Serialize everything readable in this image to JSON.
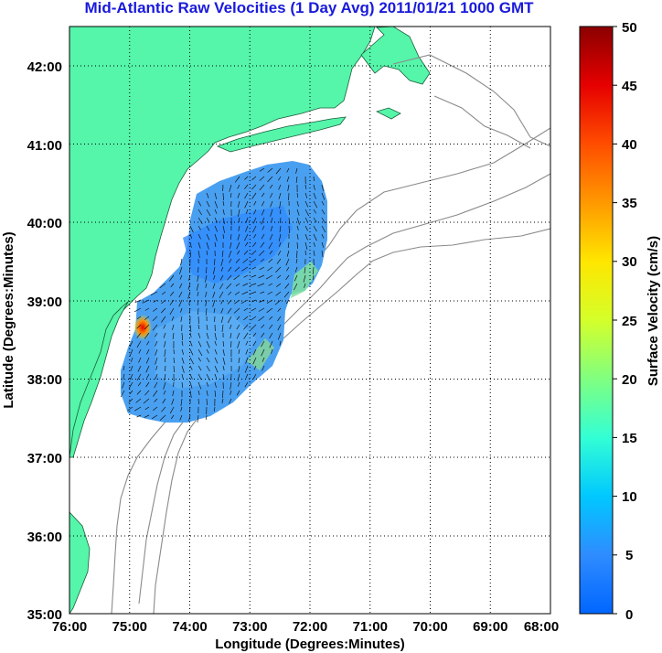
{
  "title": "Mid-Atlantic Raw Velocities (1 Day Avg) 2011/01/21 1000 GMT",
  "xlabel": "Longitude (Degrees:Minutes)",
  "ylabel": "Latitude (Degrees:Minutes)",
  "x_ticks": [
    "76:00",
    "75:00",
    "74:00",
    "73:00",
    "72:00",
    "71:00",
    "70:00",
    "69:00",
    "68:00"
  ],
  "y_ticks": [
    "42:00",
    "41:00",
    "40:00",
    "39:00",
    "38:00",
    "37:00",
    "36:00",
    "35:00"
  ],
  "colorbar": {
    "label": "Surface Velocity (cm/s)",
    "ticks": [
      "50",
      "45",
      "40",
      "35",
      "30",
      "25",
      "20",
      "15",
      "10",
      "5",
      "0"
    ],
    "range": [
      0,
      50
    ]
  },
  "colors": {
    "land": "#55f5aa",
    "title": "#1a1adc",
    "bathymetry": "#8a8a8a",
    "grid": "#000000"
  },
  "map_data": {
    "lon_range": [
      -76,
      -68
    ],
    "lat_range": [
      35,
      42.5
    ],
    "grid": "dotted",
    "field": "surface current velocity, 1-day average"
  }
}
